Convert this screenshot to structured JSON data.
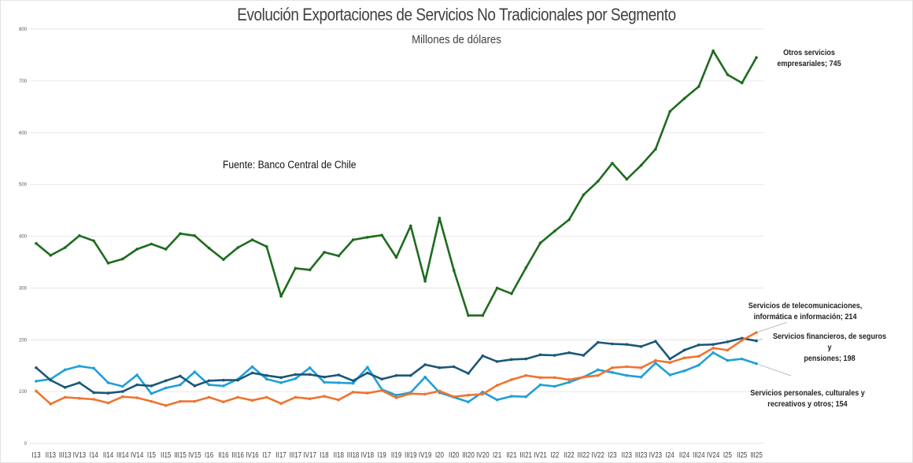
{
  "chart_data": {
    "type": "line",
    "title": "Evolución Exportaciones de Servicios No Tradicionales por Segmento",
    "subtitle": "Millones de dólares",
    "source_note": "Fuente: Banco Central de Chile",
    "xlabel": "",
    "ylabel": "",
    "ylim": [
      0,
      800
    ],
    "yticks": [
      0,
      100,
      200,
      300,
      400,
      500,
      600,
      700,
      800
    ],
    "grid": true,
    "legend": "none (end-of-line data labels)",
    "categories": [
      "I13",
      "II13",
      "III13",
      "IV13",
      "I14",
      "II14",
      "III14",
      "IV14",
      "I15",
      "II15",
      "III15",
      "IV15",
      "I16",
      "II16",
      "III16",
      "IV16",
      "I17",
      "II17",
      "III17",
      "IV17",
      "I18",
      "II18",
      "III18",
      "IV18",
      "I19",
      "II19",
      "III19",
      "IV19",
      "I20",
      "II20",
      "III20",
      "IV20",
      "I21",
      "II21",
      "III21",
      "IV21",
      "I22",
      "II22",
      "III22",
      "IV22",
      "I23",
      "II23",
      "III23",
      "IV23",
      "I24",
      "II24",
      "III24",
      "IV24",
      "I25",
      "II25",
      "III25"
    ],
    "series": [
      {
        "name": "Otros servicios empresariales",
        "color": "#1e6b1e",
        "end_label": "Otros servicios empresariales; 745",
        "values": [
          386,
          363,
          378,
          401,
          391,
          348,
          356,
          375,
          385,
          375,
          405,
          401,
          377,
          355,
          378,
          393,
          380,
          284,
          338,
          335,
          369,
          362,
          393,
          398,
          402,
          359,
          420,
          313,
          435,
          334,
          247,
          247,
          300,
          289,
          339,
          387,
          410,
          432,
          480,
          506,
          541,
          510,
          537,
          568,
          641,
          666,
          689,
          758,
          712,
          696,
          745
        ]
      },
      {
        "name": "Servicios financieros, de seguros y pensiones",
        "color": "#1b5778",
        "end_label": "Servicios financieros, de seguros y pensiones; 198",
        "values": [
          146,
          122,
          108,
          117,
          98,
          97,
          100,
          113,
          111,
          121,
          130,
          111,
          121,
          122,
          122,
          136,
          131,
          127,
          133,
          133,
          128,
          132,
          121,
          136,
          124,
          131,
          131,
          152,
          146,
          148,
          135,
          169,
          158,
          162,
          163,
          171,
          170,
          175,
          170,
          195,
          192,
          191,
          187,
          197,
          163,
          180,
          190,
          191,
          196,
          203,
          198
        ]
      },
      {
        "name": "Servicios de telecomunicaciones, informática e información",
        "color": "#ee7430",
        "end_label": "Servicios de telecomunicaciones, informática e información; 214",
        "values": [
          101,
          76,
          89,
          87,
          85,
          78,
          90,
          88,
          81,
          73,
          81,
          81,
          89,
          80,
          89,
          83,
          89,
          77,
          89,
          86,
          91,
          84,
          99,
          97,
          102,
          88,
          96,
          95,
          101,
          90,
          93,
          95,
          112,
          123,
          131,
          127,
          127,
          123,
          128,
          131,
          146,
          148,
          146,
          160,
          156,
          165,
          168,
          184,
          180,
          199,
          214
        ]
      },
      {
        "name": "Servicios personales, culturales y recreativos y otros",
        "color": "#1fa0d6",
        "end_label": "Servicios personales, culturales y recreativos y otros; 154",
        "values": [
          120,
          124,
          142,
          149,
          145,
          117,
          110,
          132,
          96,
          107,
          113,
          138,
          113,
          111,
          124,
          148,
          124,
          117,
          125,
          146,
          118,
          117,
          116,
          147,
          104,
          93,
          98,
          128,
          98,
          89,
          80,
          99,
          84,
          91,
          90,
          113,
          110,
          118,
          128,
          142,
          137,
          131,
          128,
          155,
          132,
          140,
          151,
          175,
          160,
          163,
          154
        ]
      }
    ]
  },
  "annotations": {
    "otros_line1": "Otros servicios",
    "otros_line2": "empresariales; 745",
    "telecom_line1": "Servicios de telecomunicaciones,",
    "telecom_line2": "informática e información; 214",
    "financieros_line1": "Servicios financieros, de seguros y",
    "financieros_line2": "pensiones; 198",
    "personales_line1": "Servicios personales, culturales y",
    "personales_line2": "recreativos y otros; 154"
  }
}
